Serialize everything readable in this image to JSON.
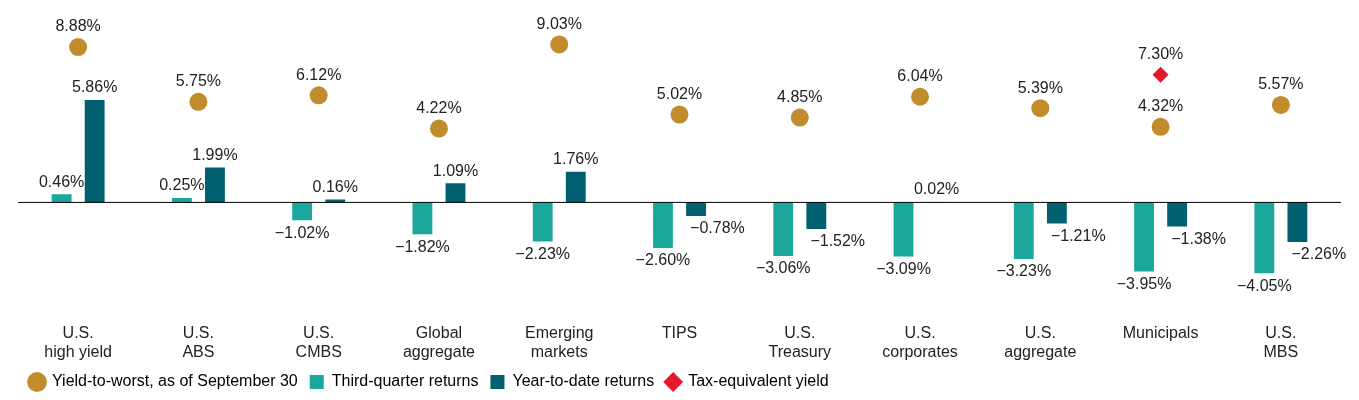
{
  "chart_data": {
    "type": "bar",
    "categories": [
      "U.S.\nhigh yield",
      "U.S.\nABS",
      "U.S.\nCMBS",
      "Global\naggregate",
      "Emerging\nmarkets",
      "TIPS",
      "U.S.\nTreasury",
      "U.S.\ncorporates",
      "U.S.\naggregate",
      "Municipals",
      "U.S.\nMBS"
    ],
    "series": [
      {
        "name": "Yield-to-worst, as of September 30",
        "type": "scatter",
        "marker": "circle",
        "color": "#c28b2c",
        "values": [
          8.88,
          5.75,
          6.12,
          4.22,
          9.03,
          5.02,
          4.85,
          6.04,
          5.39,
          4.32,
          5.57
        ],
        "value_labels": [
          "8.88%",
          "5.75%",
          "6.12%",
          "4.22%",
          "9.03%",
          "5.02%",
          "4.85%",
          "6.04%",
          "5.39%",
          "4.32%",
          "5.57%"
        ]
      },
      {
        "name": "Third-quarter returns",
        "color": "#1ba89c",
        "values": [
          0.46,
          0.25,
          -1.02,
          -1.82,
          -2.23,
          -2.6,
          -3.06,
          -3.09,
          -3.23,
          -3.95,
          -4.05
        ],
        "value_labels": [
          "0.46%",
          "0.25%",
          "−1.02%",
          "−1.82%",
          "−2.23%",
          "−2.60%",
          "−3.06%",
          "−3.09%",
          "−3.23%",
          "−3.95%",
          "−4.05%"
        ]
      },
      {
        "name": "Year-to-date returns",
        "color": "#00606f",
        "values": [
          5.86,
          1.99,
          0.16,
          1.09,
          1.76,
          -0.78,
          -1.52,
          0.02,
          -1.21,
          -1.38,
          -2.26
        ],
        "value_labels": [
          "5.86%",
          "1.99%",
          "0.16%",
          "1.09%",
          "1.76%",
          "−0.78%",
          "−1.52%",
          "0.02%",
          "−1.21%",
          "−1.38%",
          "−2.26%"
        ]
      },
      {
        "name": "Tax-equivalent yield",
        "type": "scatter",
        "marker": "diamond",
        "color": "#e3182d",
        "values": [
          null,
          null,
          null,
          null,
          null,
          null,
          null,
          null,
          null,
          7.3,
          null
        ],
        "value_labels": [
          null,
          null,
          null,
          null,
          null,
          null,
          null,
          null,
          null,
          "7.30%",
          null
        ]
      }
    ],
    "tick_labels": "x",
    "grid": false,
    "legend": "bottom"
  }
}
